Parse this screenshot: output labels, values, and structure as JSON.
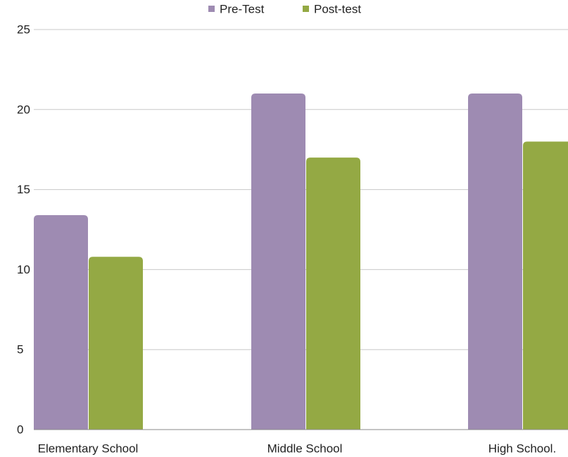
{
  "chart_data": {
    "type": "bar",
    "categories": [
      "Elementary School",
      "Middle School",
      "High School."
    ],
    "series": [
      {
        "name": "Pre-Test",
        "values": [
          13.4,
          21,
          21
        ],
        "color": "#9E8BB2"
      },
      {
        "name": "Post-test",
        "values": [
          10.8,
          17,
          18
        ],
        "color": "#94A944"
      }
    ],
    "ylim": [
      0,
      25
    ],
    "yticks": [
      0,
      5,
      10,
      15,
      20,
      25
    ],
    "grid": true,
    "legend": "top-center"
  }
}
